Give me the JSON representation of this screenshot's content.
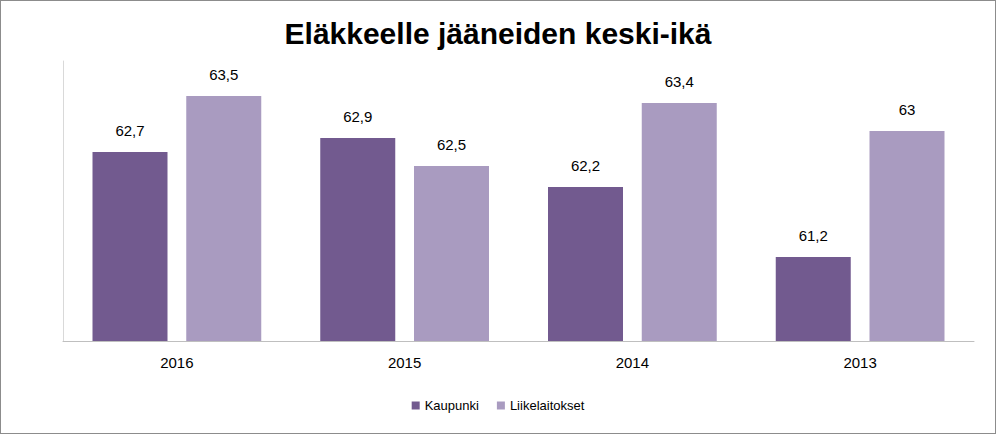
{
  "chart_data": {
    "type": "bar",
    "title": "Eläkkeelle jääneiden keski-ikä",
    "categories": [
      "2016",
      "2015",
      "2014",
      "2013"
    ],
    "series": [
      {
        "name": "Kaupunki",
        "color": "#725a8f",
        "values": [
          62.7,
          62.9,
          62.2,
          61.2
        ],
        "value_labels": [
          "62,7",
          "62,9",
          "62,2",
          "61,2"
        ]
      },
      {
        "name": "Liikelaitokset",
        "color": "#a99bc0",
        "values": [
          63.5,
          62.5,
          63.4,
          63
        ],
        "value_labels": [
          "63,5",
          "62,5",
          "63,4",
          "63"
        ]
      }
    ],
    "ylim": [
      60,
      64
    ],
    "grid": false,
    "legend": "bottom",
    "data_labels": true,
    "tick_labels": "x"
  }
}
